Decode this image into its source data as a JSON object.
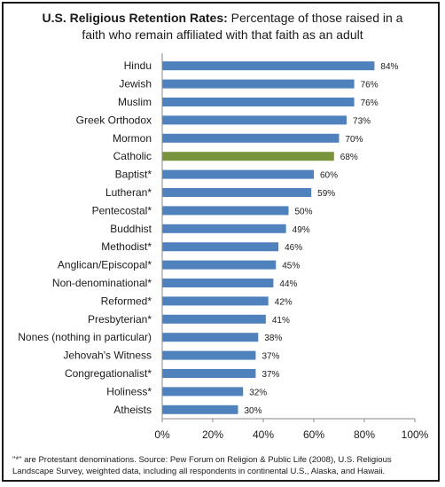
{
  "chart_data": {
    "type": "bar",
    "orientation": "horizontal",
    "title_bold": "U.S. Religious Retention Rates:",
    "title_rest_line1": " Percentage of those raised in a",
    "title_line2": "faith who remain affiliated with that faith as an adult",
    "categories": [
      "Hindu",
      "Jewish",
      "Muslim",
      "Greek Orthodox",
      "Mormon",
      "Catholic",
      "Baptist*",
      "Lutheran*",
      "Pentecostal*",
      "Buddhist",
      "Methodist*",
      "Anglican/Episcopal*",
      "Non-denominational*",
      "Reformed*",
      "Presbyterian*",
      "Nones (nothing in particular)",
      "Jehovah's Witness",
      "Congregationalist*",
      "Holiness*",
      "Atheists"
    ],
    "values": [
      84,
      76,
      76,
      73,
      70,
      68,
      60,
      59,
      50,
      49,
      46,
      45,
      44,
      42,
      41,
      38,
      37,
      37,
      32,
      30
    ],
    "value_labels": [
      "84%",
      "76%",
      "76%",
      "73%",
      "70%",
      "68%",
      "60%",
      "59%",
      "50%",
      "49%",
      "46%",
      "45%",
      "44%",
      "42%",
      "41%",
      "38%",
      "37%",
      "37%",
      "32%",
      "30%"
    ],
    "xlim": [
      0,
      100
    ],
    "x_ticks": [
      "0%",
      "20%",
      "40%",
      "60%",
      "80%",
      "100%"
    ],
    "x_tick_values": [
      0,
      20,
      40,
      60,
      80,
      100
    ],
    "highlight_category": "Catholic",
    "colors": {
      "bar": "#4f81bd",
      "highlight": "#77933c"
    },
    "grid": false
  },
  "footnote": "\"*\" are Protestant denominations. Source: Pew Forum on Religion & Public Life (2008), U.S. Religious Landscape Survey, weighted data, including all respondents in continental U.S., Alaska, and Hawaii."
}
